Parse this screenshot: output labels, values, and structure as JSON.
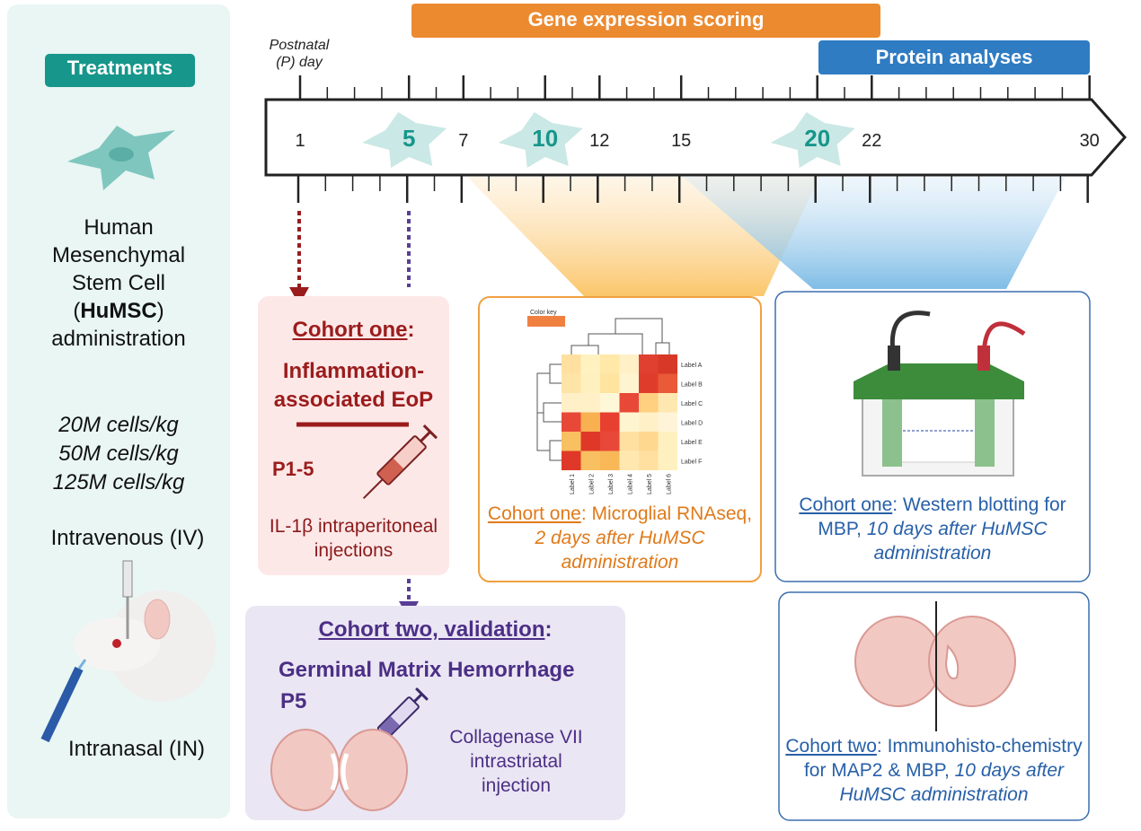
{
  "treatments": {
    "title": "Treatments",
    "cell_lines": [
      "Human",
      "Mesenchymal",
      "Stem Cell"
    ],
    "abbr_open": "(",
    "abbr": "HuMSC",
    "abbr_close": ")",
    "cell_last": "administration",
    "doses": [
      "20M cells/kg",
      "50M cells/kg",
      "125M cells/kg"
    ],
    "route_iv": "Intravenous (IV)",
    "route_in": "Intranasal (IN)"
  },
  "timeline": {
    "label": [
      "Postnatal",
      "(P) day"
    ],
    "days": [
      {
        "value": 1,
        "highlight": false
      },
      {
        "value": 5,
        "highlight": true
      },
      {
        "value": 7,
        "highlight": false
      },
      {
        "value": 10,
        "highlight": true
      },
      {
        "value": 12,
        "highlight": false
      },
      {
        "value": 15,
        "highlight": false
      },
      {
        "value": 20,
        "highlight": true
      },
      {
        "value": 22,
        "highlight": false
      },
      {
        "value": 30,
        "highlight": false
      }
    ],
    "gene_expression": "Gene expression scoring",
    "protein": "Protein analyses"
  },
  "cohort_one": {
    "title": "Cohort one",
    "colon": ":",
    "model": [
      "Inflammation-",
      "associated EoP"
    ],
    "days": "P1-5",
    "treatment": "IL-1β intraperitoneal injections"
  },
  "cohort_two": {
    "title": "Cohort two, validation",
    "colon": ":",
    "model": "Germinal Matrix Hemorrhage",
    "days": "P5",
    "treatment": "Collagenase VII intrastriatal injection"
  },
  "rnaseq": {
    "color_key": "Color key",
    "row_labels": [
      "Label A",
      "Label B",
      "Label C",
      "Label D",
      "Label E",
      "Label F"
    ],
    "col_labels": [
      "Label 1",
      "Label 2",
      "Label 3",
      "Label 4",
      "Label 5",
      "Label 6"
    ],
    "cohort": "Cohort one",
    "text": ": Microglial RNAseq, ",
    "italic": "2 days after HuMSC administration"
  },
  "western": {
    "cohort": "Cohort one",
    "text": ": Western blotting for MBP, ",
    "italic": "10 days after HuMSC administration"
  },
  "ihc": {
    "cohort": "Cohort two",
    "text": ": Immunohisto-chemistry for MAP2 & MBP, ",
    "italic": "10 days after HuMSC administration"
  }
}
